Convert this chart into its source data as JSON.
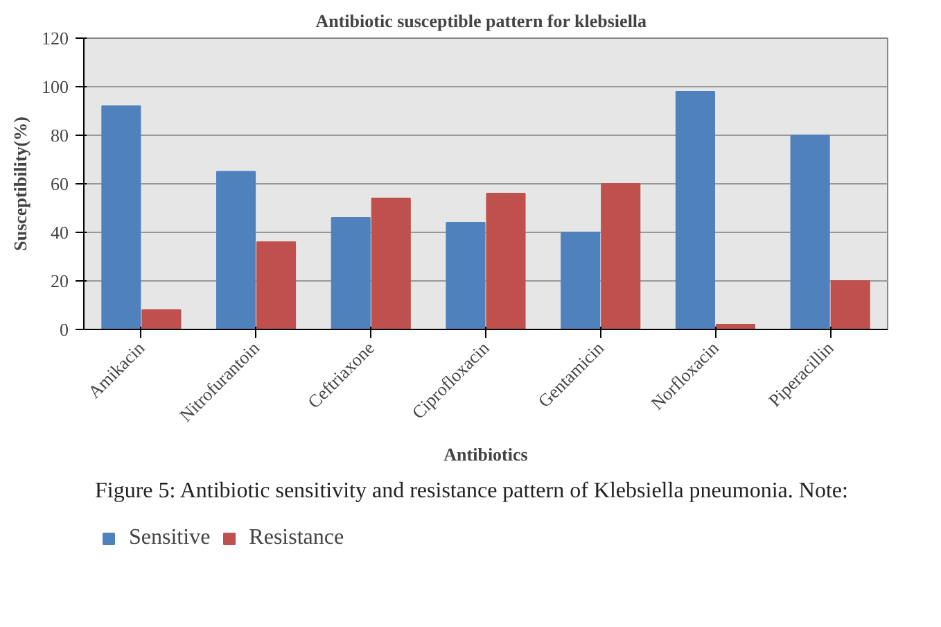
{
  "chart_data": {
    "type": "bar",
    "title": "Antibiotic  susceptible pattern  for klebsiella",
    "xlabel": "Antibiotics",
    "ylabel": "Susceptibility(%)",
    "categories": [
      "Amikacin",
      "Nitrofurantoin",
      "Ceftriaxone",
      "Ciprofloxacin",
      "Gentamicin",
      "Norfloxacin",
      "Piperacillin"
    ],
    "series": [
      {
        "name": "Sensitive",
        "color": "#4f81bd",
        "values": [
          92,
          65,
          46,
          44,
          40,
          98,
          80
        ]
      },
      {
        "name": "Resistance",
        "color": "#c0504d",
        "values": [
          8,
          36,
          54,
          56,
          60,
          2,
          20
        ]
      }
    ],
    "ylim": [
      0,
      120
    ],
    "yticks": [
      0,
      20,
      40,
      60,
      80,
      100,
      120
    ],
    "grid": "y",
    "legend": "bottom",
    "annotations": [
      "Figure 5: Antibiotic sensitivity and resistance pattern of Klebsiella pneumonia. Note:"
    ]
  }
}
